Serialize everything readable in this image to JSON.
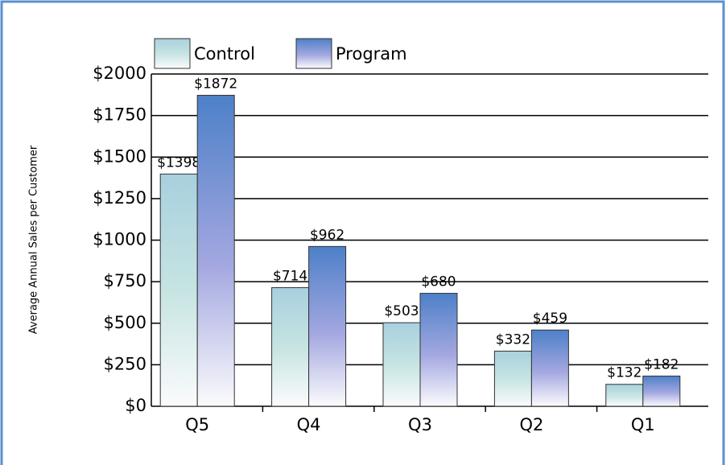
{
  "chart_data": {
    "type": "bar",
    "y_label": "Average Annual Sales per Customer",
    "categories": [
      "Q5",
      "Q4",
      "Q3",
      "Q2",
      "Q1"
    ],
    "series": [
      {
        "name": "Control",
        "color": "#a8d0de",
        "values": [
          1398,
          714,
          503,
          332,
          132
        ],
        "value_labels": [
          "$1398",
          "$714",
          "$503",
          "$332",
          "$132"
        ]
      },
      {
        "name": "Program",
        "color": "#4d80c8",
        "values": [
          1872,
          962,
          680,
          459,
          182
        ],
        "value_labels": [
          "$1872",
          "$962",
          "$680",
          "$459",
          "$182"
        ]
      }
    ],
    "ylim": [
      0,
      2000
    ],
    "yticks": [
      {
        "value": 0,
        "label": "$0"
      },
      {
        "value": 250,
        "label": "$250"
      },
      {
        "value": 500,
        "label": "$500"
      },
      {
        "value": 750,
        "label": "$750"
      },
      {
        "value": 1000,
        "label": "$1000"
      },
      {
        "value": 1250,
        "label": "$1250"
      },
      {
        "value": 1500,
        "label": "$1500"
      },
      {
        "value": 1750,
        "label": "$1750"
      },
      {
        "value": 2000,
        "label": "$2000"
      }
    ],
    "grid": true
  }
}
